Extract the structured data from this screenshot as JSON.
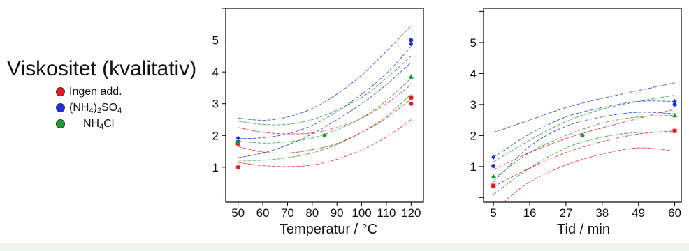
{
  "title": "Viskositet (kvalitativ)",
  "legend": [
    {
      "label": "Ingen add.",
      "color": "#e8191b",
      "formula": null
    },
    {
      "label": "(NH4)2SO4",
      "color": "#1f2fe0",
      "formula": [
        {
          "t": "(NH",
          "sub": false
        },
        {
          "t": "4",
          "sub": true
        },
        {
          "t": ")",
          "sub": false
        },
        {
          "t": "2",
          "sub": true
        },
        {
          "t": "SO",
          "sub": false
        },
        {
          "t": "4",
          "sub": true
        }
      ]
    },
    {
      "label": "NH4Cl",
      "color": "#1a9c2a",
      "formula": [
        {
          "t": "NH",
          "sub": false
        },
        {
          "t": "4",
          "sub": true
        },
        {
          "t": "Cl",
          "sub": false
        }
      ]
    }
  ],
  "chart_data": [
    {
      "type": "scatter",
      "xlabel": "Temperatur / °C",
      "x_ticks": [
        "50",
        "60",
        "70",
        "80",
        "90",
        "100",
        "110",
        "120"
      ],
      "y_ticks": [
        "1",
        "2",
        "3",
        "4",
        "5"
      ],
      "xlim": [
        45,
        125
      ],
      "ylim": [
        -0.1,
        6.0
      ],
      "series": [
        {
          "name": "Ingen add.",
          "color": "#e8191b",
          "marker": "circle",
          "points": [
            [
              50,
              1.0
            ],
            [
              120,
              3.0
            ]
          ]
        },
        {
          "name": "Ingen add.",
          "color": "#e8191b",
          "marker": "square",
          "points": [
            [
              50,
              1.75
            ],
            [
              120,
              3.2
            ]
          ]
        },
        {
          "name": "(NH4)2SO4",
          "color": "#1f2fe0",
          "marker": "circle",
          "points": [
            [
              50,
              1.8
            ],
            [
              120,
              5.0
            ]
          ]
        },
        {
          "name": "(NH4)2SO4",
          "color": "#1f2fe0",
          "marker": "diamond",
          "points": [
            [
              50,
              1.92
            ],
            [
              120,
              4.88
            ]
          ]
        },
        {
          "name": "NH4Cl",
          "color": "#1a9c2a",
          "marker": "circle",
          "points": [
            [
              85,
              2.0
            ]
          ]
        },
        {
          "name": "NH4Cl",
          "color": "#1a9c2a",
          "marker": "triangle",
          "points": [
            [
              50,
              1.8
            ],
            [
              120,
              3.85
            ]
          ]
        }
      ],
      "fit_curves": [
        {
          "color": "#1f2fe0",
          "x": [
            50,
            60,
            70,
            80,
            90,
            100,
            110,
            120
          ],
          "y": [
            2.55,
            2.48,
            2.58,
            2.85,
            3.3,
            3.9,
            4.65,
            5.45
          ]
        },
        {
          "color": "#1f2fe0",
          "x": [
            50,
            60,
            70,
            80,
            90,
            100,
            110,
            120
          ],
          "y": [
            1.9,
            1.93,
            2.05,
            2.32,
            2.75,
            3.3,
            3.95,
            4.8
          ]
        },
        {
          "color": "#1f2fe0",
          "x": [
            50,
            60,
            70,
            80,
            90,
            100,
            110,
            120
          ],
          "y": [
            1.3,
            1.45,
            1.7,
            2.05,
            2.5,
            3.0,
            3.6,
            4.3
          ]
        },
        {
          "color": "#1a9c2a",
          "x": [
            50,
            60,
            70,
            80,
            90,
            100,
            110,
            120
          ],
          "y": [
            2.45,
            2.35,
            2.35,
            2.5,
            2.8,
            3.2,
            3.8,
            4.5
          ]
        },
        {
          "color": "#1a9c2a",
          "x": [
            50,
            60,
            70,
            80,
            90,
            100,
            110,
            120
          ],
          "y": [
            1.82,
            1.76,
            1.8,
            1.92,
            2.18,
            2.55,
            3.1,
            3.8
          ]
        },
        {
          "color": "#1a9c2a",
          "x": [
            50,
            60,
            70,
            80,
            90,
            100,
            110,
            120
          ],
          "y": [
            1.22,
            1.22,
            1.3,
            1.45,
            1.72,
            2.1,
            2.6,
            3.3
          ]
        },
        {
          "color": "#e8191b",
          "x": [
            50,
            60,
            70,
            80,
            90,
            100,
            110,
            120
          ],
          "y": [
            2.25,
            2.1,
            2.05,
            2.08,
            2.25,
            2.55,
            3.0,
            3.6
          ]
        },
        {
          "color": "#e8191b",
          "x": [
            50,
            60,
            70,
            80,
            90,
            100,
            110,
            120
          ],
          "y": [
            1.65,
            1.48,
            1.45,
            1.55,
            1.75,
            2.1,
            2.55,
            3.15
          ]
        },
        {
          "color": "#e8191b",
          "x": [
            50,
            60,
            70,
            80,
            90,
            100,
            110,
            120
          ],
          "y": [
            1.15,
            1.05,
            1.02,
            1.07,
            1.25,
            1.55,
            1.95,
            2.5
          ]
        }
      ]
    },
    {
      "type": "scatter",
      "xlabel": "Tid / min",
      "x_ticks": [
        "5",
        "16",
        "27",
        "38",
        "49",
        "60"
      ],
      "y_ticks": [
        "1",
        "2",
        "3",
        "4",
        "5"
      ],
      "xlim": [
        2,
        62
      ],
      "ylim": [
        -0.15,
        6.1
      ],
      "series": [
        {
          "name": "Ingen add.",
          "color": "#e8191b",
          "marker": "square",
          "points": [
            [
              5,
              0.38
            ],
            [
              60,
              2.15
            ]
          ]
        },
        {
          "name": "(NH4)2SO4",
          "color": "#1f2fe0",
          "marker": "circle",
          "points": [
            [
              5,
              1.02
            ],
            [
              60,
              3.0
            ]
          ]
        },
        {
          "name": "(NH4)2SO4",
          "color": "#1f2fe0",
          "marker": "diamond",
          "points": [
            [
              5,
              1.3
            ],
            [
              60,
              3.1
            ]
          ]
        },
        {
          "name": "NH4Cl",
          "color": "#1a9c2a",
          "marker": "circle",
          "points": [
            [
              32,
              2.0
            ]
          ]
        },
        {
          "name": "NH4Cl",
          "color": "#1a9c2a",
          "marker": "triangle",
          "points": [
            [
              5,
              0.68
            ],
            [
              60,
              2.65
            ]
          ]
        }
      ],
      "fit_curves": [
        {
          "color": "#1f2fe0",
          "x": [
            5,
            16,
            27,
            38,
            49,
            60
          ],
          "y": [
            2.1,
            2.5,
            2.9,
            3.2,
            3.45,
            3.7
          ]
        },
        {
          "color": "#1f2fe0",
          "x": [
            5,
            16,
            27,
            38,
            49,
            60
          ],
          "y": [
            1.3,
            2.05,
            2.6,
            2.9,
            3.1,
            3.1
          ]
        },
        {
          "color": "#1f2fe0",
          "x": [
            5,
            16,
            27,
            38,
            49,
            60
          ],
          "y": [
            0.5,
            1.65,
            2.3,
            2.6,
            2.75,
            2.7
          ]
        },
        {
          "color": "#1a9c2a",
          "x": [
            5,
            16,
            27,
            38,
            49,
            60
          ],
          "y": [
            1.15,
            1.85,
            2.45,
            2.85,
            3.1,
            3.3
          ]
        },
        {
          "color": "#1a9c2a",
          "x": [
            5,
            16,
            27,
            38,
            49,
            60
          ],
          "y": [
            0.6,
            1.45,
            2.0,
            2.4,
            2.6,
            2.65
          ]
        },
        {
          "color": "#1a9c2a",
          "x": [
            5,
            16,
            27,
            38,
            49,
            60
          ],
          "y": [
            0.1,
            0.95,
            1.6,
            1.95,
            2.1,
            2.1
          ]
        },
        {
          "color": "#e8191b",
          "x": [
            5,
            16,
            27,
            38,
            49,
            60
          ],
          "y": [
            0.9,
            1.45,
            1.9,
            2.25,
            2.55,
            2.85
          ]
        },
        {
          "color": "#e8191b",
          "x": [
            5,
            16,
            27,
            38,
            49,
            60
          ],
          "y": [
            0.35,
            0.95,
            1.45,
            1.8,
            2.05,
            2.15
          ]
        },
        {
          "color": "#e8191b",
          "x": [
            8,
            16,
            27,
            38,
            49,
            60
          ],
          "y": [
            -0.15,
            0.5,
            1.05,
            1.4,
            1.6,
            1.5
          ]
        }
      ]
    }
  ]
}
